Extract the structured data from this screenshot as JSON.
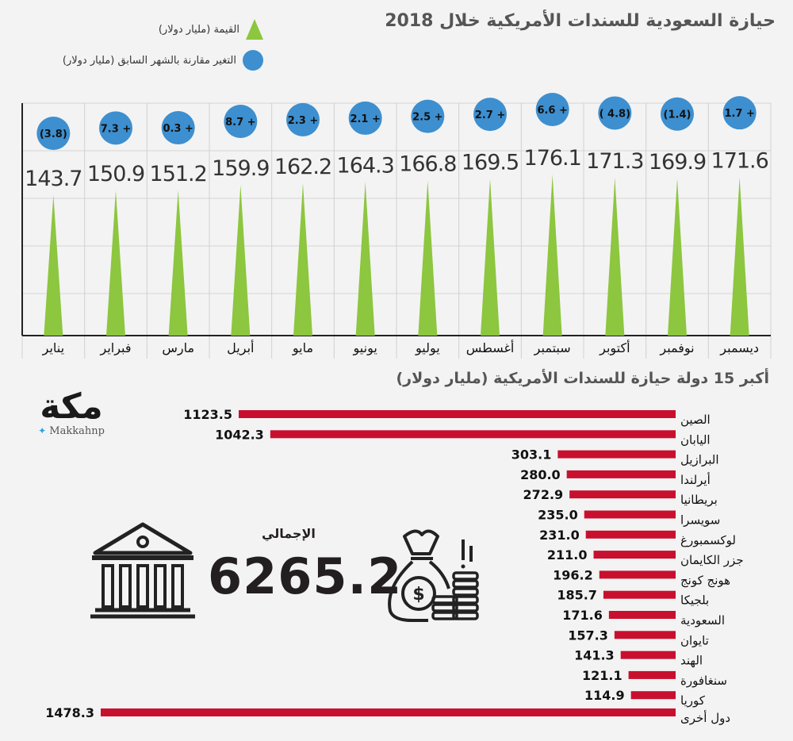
{
  "header": {
    "title": "حيازة السعودية للسندات الأمريكية خلال 2018",
    "legend_value": "القيمة (مليار دولار)",
    "legend_change": "التغير مقارنة بالشهر السابق (مليار دولار)"
  },
  "colors": {
    "triangle": "#8dc63f",
    "circle": "#3d8fcf",
    "bar": "#c8102e",
    "text": "#231f20"
  },
  "chart_data": [
    {
      "type": "bar",
      "title": "حيازة السعودية للسندات الأمريكية خلال 2018",
      "categories": [
        "يناير",
        "فبراير",
        "مارس",
        "أبريل",
        "مايو",
        "يونيو",
        "يوليو",
        "أغسطس",
        "سبتمبر",
        "أكتوبر",
        "نوفمبر",
        "ديسمبر"
      ],
      "series": [
        {
          "name": "القيمة (مليار دولار)",
          "values": [
            143.7,
            150.9,
            151.2,
            159.9,
            162.2,
            164.3,
            166.8,
            169.5,
            176.1,
            171.3,
            169.9,
            171.6
          ],
          "labels": [
            "143.7",
            "150.9",
            "151.2",
            "159.9",
            "162.2",
            "164.3",
            "166.8",
            "169.5",
            "176.1",
            "171.3",
            "169.9",
            "171.6"
          ]
        },
        {
          "name": "التغير مقارنة بالشهر السابق (مليار دولار)",
          "values": [
            -3.8,
            7.3,
            0.3,
            8.7,
            2.3,
            2.1,
            2.5,
            2.7,
            6.6,
            -4.8,
            -1.4,
            1.7
          ],
          "labels": [
            "(3.8)",
            "7.3 +",
            "0.3 +",
            "8.7 +",
            "2.3 +",
            "2.1 +",
            "2.5 +",
            "2.7 +",
            "6.6 +",
            "( 4.8)",
            "(1.4)",
            "1.7 +"
          ]
        }
      ],
      "grid": true,
      "category_order": "left-to-right"
    },
    {
      "type": "bar",
      "orientation": "horizontal",
      "title": "أكبر 15 دولة حيازة للسندات الأمريكية (مليار دولار)",
      "categories": [
        "الصين",
        "اليابان",
        "البرازيل",
        "أيرلندا",
        "بريطانيا",
        "سويسرا",
        "لوكسمبورغ",
        "جزر الكايمان",
        "هونج كونج",
        "بلجيكا",
        "السعودية",
        "تايوان",
        "الهند",
        "سنغافورة",
        "كوريا",
        "دول أخرى"
      ],
      "values": [
        1123.5,
        1042.3,
        303.1,
        280.0,
        272.9,
        235.0,
        231.0,
        211.0,
        196.2,
        185.7,
        171.6,
        157.3,
        141.3,
        121.1,
        114.9,
        1478.3
      ],
      "labels": [
        "1123.5",
        "1042.3",
        "303.1",
        "280.0",
        "272.9",
        "235.0",
        "231.0",
        "211.0",
        "196.2",
        "185.7",
        "171.6",
        "157.3",
        "141.3",
        "121.1",
        "114.9",
        "1478.3"
      ]
    }
  ],
  "total": {
    "label": "الإجمالي",
    "value": "6265.2"
  },
  "logo": {
    "text": "مكة",
    "handle": "Makkahnp"
  }
}
